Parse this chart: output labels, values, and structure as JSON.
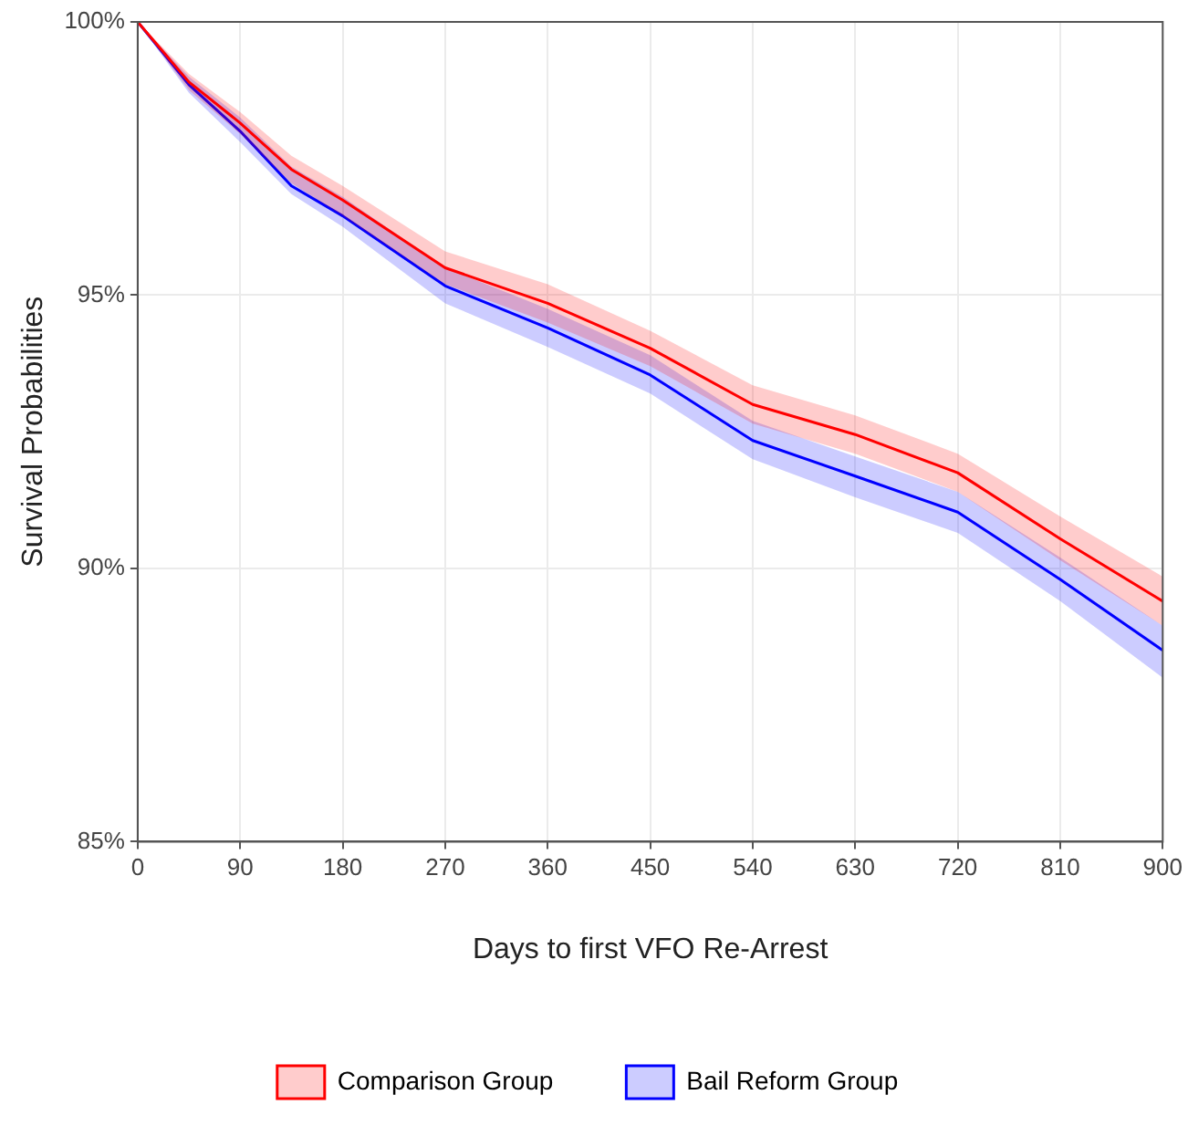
{
  "chart_data": {
    "type": "line",
    "xlabel": "Days to first VFO Re-Arrest",
    "ylabel": "Survival Probabilities",
    "x": [
      0,
      45,
      90,
      135,
      180,
      270,
      360,
      450,
      540,
      630,
      720,
      810,
      900
    ],
    "series": [
      {
        "name": "Comparison Group",
        "color": "#ff0000",
        "values": [
          100,
          98.9,
          98.15,
          97.3,
          96.74,
          95.5,
          94.85,
          94.03,
          93.0,
          92.45,
          91.75,
          90.54,
          89.4
        ],
        "lower": [
          100,
          98.75,
          97.95,
          97.05,
          96.45,
          95.2,
          94.5,
          93.7,
          92.65,
          92.1,
          91.4,
          90.15,
          88.95
        ],
        "upper": [
          100,
          99.05,
          98.35,
          97.55,
          97.0,
          95.8,
          95.2,
          94.35,
          93.35,
          92.8,
          92.1,
          90.95,
          89.85
        ]
      },
      {
        "name": "Bail Reform Group",
        "color": "#0000ff",
        "values": [
          100,
          98.85,
          98.0,
          97.0,
          96.45,
          95.17,
          94.4,
          93.54,
          92.34,
          91.69,
          91.03,
          89.8,
          88.5
        ],
        "lower": [
          100,
          98.7,
          97.8,
          96.85,
          96.25,
          94.85,
          94.05,
          93.2,
          92.0,
          91.3,
          90.65,
          89.4,
          88.0
        ],
        "upper": [
          100,
          99.0,
          98.25,
          97.35,
          96.8,
          95.5,
          94.75,
          93.9,
          92.7,
          92.05,
          91.4,
          90.2,
          88.95
        ]
      }
    ],
    "xlim": [
      0,
      900
    ],
    "xticks": [
      0,
      90,
      180,
      270,
      360,
      450,
      540,
      630,
      720,
      810,
      900
    ],
    "ylim": [
      85,
      100
    ],
    "yticks": [
      {
        "value": 85,
        "label": "85%"
      },
      {
        "value": 90,
        "label": "90%"
      },
      {
        "value": 95,
        "label": "95%"
      },
      {
        "value": 100,
        "label": "100%"
      }
    ],
    "grid": true,
    "legend": "bottom",
    "line_style": "solid"
  }
}
